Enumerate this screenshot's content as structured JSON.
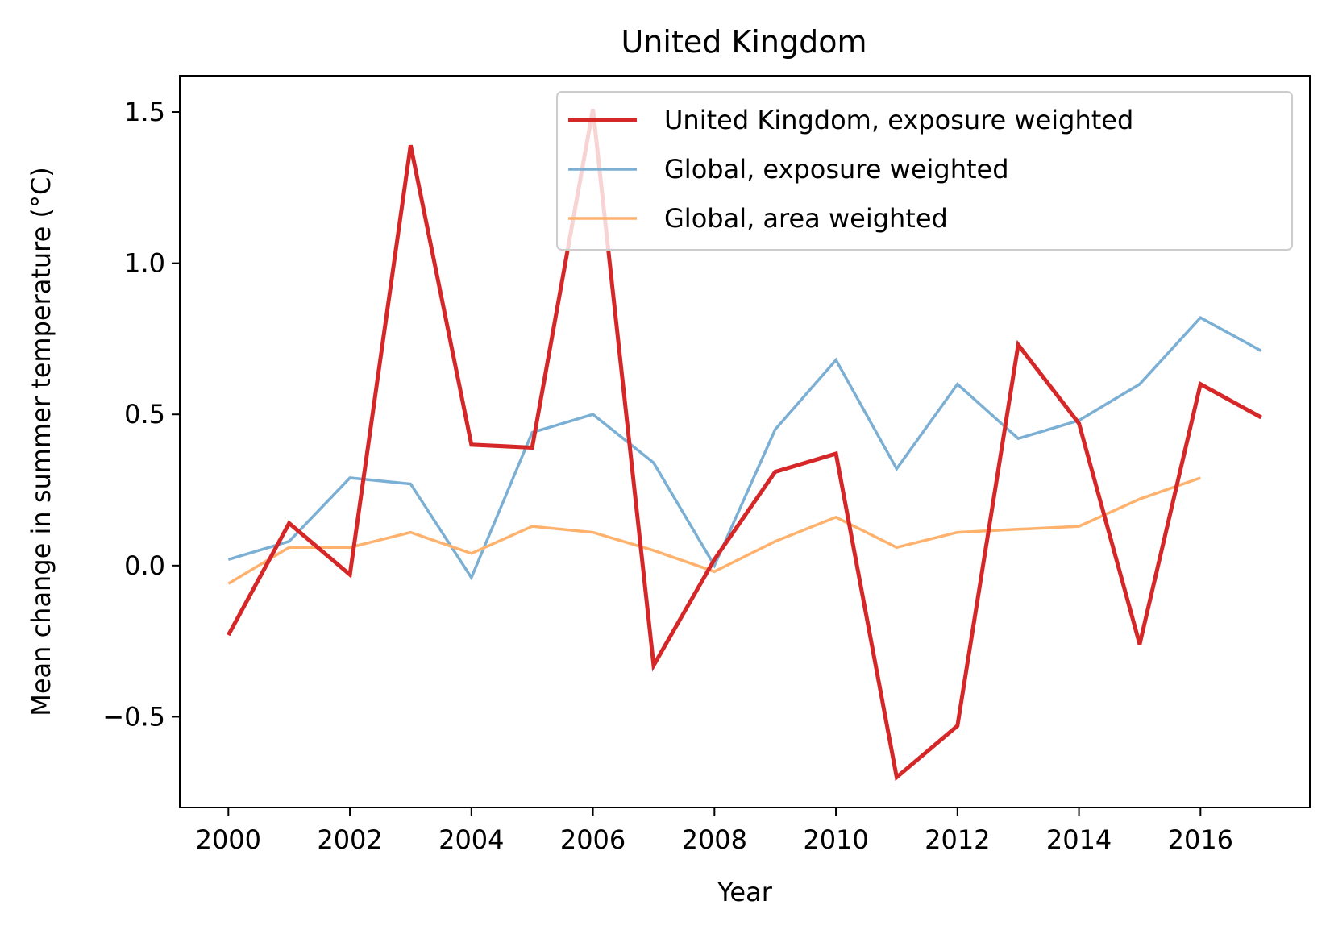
{
  "chart_data": {
    "type": "line",
    "title": "United Kingdom",
    "xlabel": "Year",
    "ylabel": "Mean change in summer temperature (°C)",
    "xlim": [
      1999.2,
      2017.8
    ],
    "ylim": [
      -0.8,
      1.62
    ],
    "x_ticks": [
      2000,
      2002,
      2004,
      2006,
      2008,
      2010,
      2012,
      2014,
      2016
    ],
    "x_tick_labels": [
      "2000",
      "2002",
      "2004",
      "2006",
      "2008",
      "2010",
      "2012",
      "2014",
      "2016"
    ],
    "y_ticks": [
      -0.5,
      0.0,
      0.5,
      1.0,
      1.5
    ],
    "y_tick_labels": [
      "−0.5",
      "0.0",
      "0.5",
      "1.0",
      "1.5"
    ],
    "grid": false,
    "legend_position": "top-right",
    "series": [
      {
        "name": "United Kingdom, exposure weighted",
        "color": "#d62728",
        "x": [
          2000,
          2001,
          2002,
          2003,
          2004,
          2005,
          2006,
          2007,
          2008,
          2009,
          2010,
          2011,
          2012,
          2013,
          2014,
          2015,
          2016,
          2017
        ],
        "values": [
          -0.23,
          0.14,
          -0.03,
          1.39,
          0.4,
          0.39,
          1.51,
          -0.33,
          0.02,
          0.31,
          0.37,
          -0.7,
          -0.53,
          0.73,
          0.47,
          -0.26,
          0.6,
          0.49
        ]
      },
      {
        "name": "Global, exposure weighted",
        "color": "#7bafd4",
        "x": [
          2000,
          2001,
          2002,
          2003,
          2004,
          2005,
          2006,
          2007,
          2008,
          2009,
          2010,
          2011,
          2012,
          2013,
          2014,
          2015,
          2016,
          2017
        ],
        "values": [
          0.02,
          0.08,
          0.29,
          0.27,
          -0.04,
          0.44,
          0.5,
          0.34,
          0.0,
          0.45,
          0.68,
          0.32,
          0.6,
          0.42,
          0.48,
          0.6,
          0.82,
          0.71
        ]
      },
      {
        "name": "Global, area weighted",
        "color": "#ffb26e",
        "x": [
          2000,
          2001,
          2002,
          2003,
          2004,
          2005,
          2006,
          2007,
          2008,
          2009,
          2010,
          2011,
          2012,
          2013,
          2014,
          2015,
          2016
        ],
        "values": [
          -0.06,
          0.06,
          0.06,
          0.11,
          0.04,
          0.13,
          0.11,
          0.05,
          -0.02,
          0.08,
          0.16,
          0.06,
          0.11,
          0.12,
          0.13,
          0.22,
          0.29
        ]
      }
    ]
  }
}
